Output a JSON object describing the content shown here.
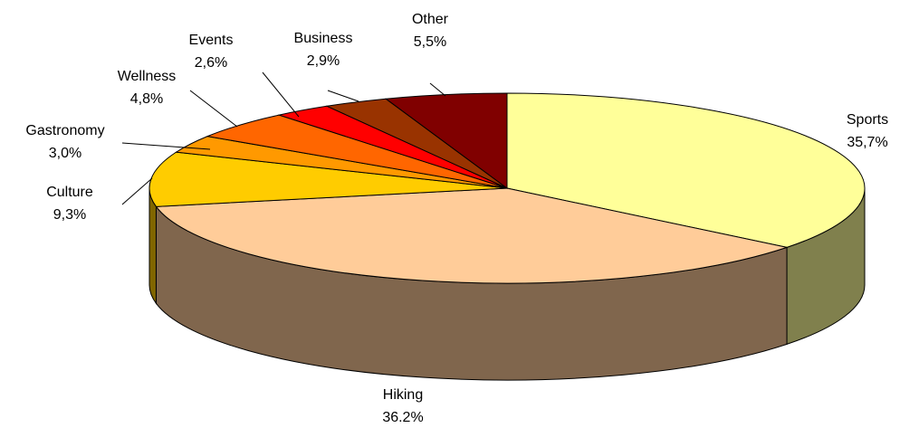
{
  "chart_data": {
    "type": "pie",
    "categories": [
      "Sports",
      "Hiking",
      "Culture",
      "Gastronomy",
      "Wellness",
      "Events",
      "Business",
      "Other"
    ],
    "values": [
      35.7,
      36.2,
      9.3,
      3.0,
      4.8,
      2.6,
      2.9,
      5.5
    ],
    "value_labels": [
      "35,7%",
      "36.2%",
      "9,3%",
      "3,0%",
      "4,8%",
      "2,6%",
      "2,9%",
      "5,5%"
    ],
    "colors": [
      "#ffff99",
      "#ffcc99",
      "#ffcc00",
      "#ff9900",
      "#ff6600",
      "#ff0000",
      "#993300",
      "#800000"
    ]
  }
}
